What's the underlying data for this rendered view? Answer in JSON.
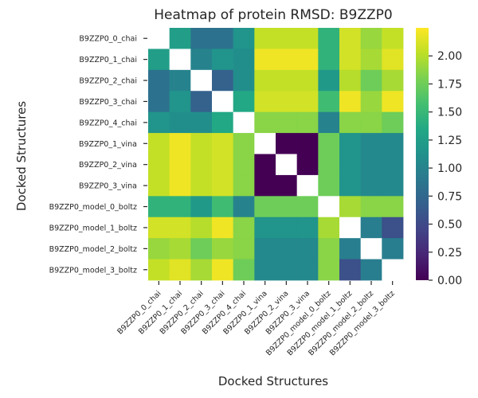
{
  "chart_data": {
    "type": "heatmap",
    "title": "Heatmap of protein RMSD: B9ZZP0",
    "xlabel": "Docked Structures",
    "ylabel": "Docked Structures",
    "labels": [
      "B9ZZP0_0_chai",
      "B9ZZP0_1_chai",
      "B9ZZP0_2_chai",
      "B9ZZP0_3_chai",
      "B9ZZP0_4_chai",
      "B9ZZP0_1_vina",
      "B9ZZP0_2_vina",
      "B9ZZP0_3_vina",
      "B9ZZP0_model_0_boltz",
      "B9ZZP0_model_1_boltz",
      "B9ZZP0_model_2_boltz",
      "B9ZZP0_model_3_boltz"
    ],
    "values": [
      [
        null,
        1.25,
        0.85,
        0.85,
        1.15,
        2.05,
        2.05,
        2.05,
        1.45,
        2.1,
        1.9,
        2.05
      ],
      [
        1.25,
        null,
        1.0,
        1.15,
        1.1,
        2.2,
        2.2,
        2.2,
        1.45,
        2.1,
        1.95,
        2.15
      ],
      [
        0.85,
        1.0,
        null,
        0.7,
        1.1,
        2.05,
        2.05,
        2.05,
        1.2,
        2.0,
        1.75,
        1.95
      ],
      [
        0.85,
        1.15,
        0.7,
        null,
        1.35,
        2.1,
        2.1,
        2.1,
        1.55,
        2.2,
        1.9,
        2.2
      ],
      [
        1.15,
        1.1,
        1.1,
        1.35,
        null,
        1.85,
        1.85,
        1.85,
        1.0,
        1.85,
        1.85,
        1.75
      ],
      [
        2.05,
        2.2,
        2.05,
        2.1,
        1.85,
        null,
        0.0,
        0.0,
        1.75,
        1.15,
        1.05,
        1.05
      ],
      [
        2.05,
        2.2,
        2.05,
        2.1,
        1.85,
        0.0,
        null,
        0.0,
        1.75,
        1.15,
        1.05,
        1.05
      ],
      [
        2.05,
        2.2,
        2.05,
        2.1,
        1.85,
        0.0,
        0.0,
        null,
        1.75,
        1.15,
        1.05,
        1.05
      ],
      [
        1.45,
        1.45,
        1.2,
        1.55,
        1.0,
        1.75,
        1.75,
        1.75,
        null,
        1.95,
        1.85,
        1.85
      ],
      [
        2.1,
        2.1,
        2.0,
        2.2,
        1.85,
        1.15,
        1.15,
        1.15,
        1.95,
        null,
        0.95,
        0.55
      ],
      [
        1.9,
        1.95,
        1.75,
        1.9,
        1.85,
        1.05,
        1.05,
        1.05,
        1.85,
        0.95,
        null,
        0.95
      ],
      [
        2.05,
        2.15,
        1.95,
        2.2,
        1.75,
        1.05,
        1.05,
        1.05,
        1.85,
        0.55,
        0.95,
        null
      ]
    ],
    "colormap": "viridis",
    "vmin": 0,
    "vmax": 2.25,
    "colorbar_ticks": [
      "0.00",
      "0.25",
      "0.50",
      "0.75",
      "1.00",
      "1.25",
      "1.50",
      "1.75",
      "2.00"
    ],
    "colorbar_tick_values": [
      0,
      0.25,
      0.5,
      0.75,
      1.0,
      1.25,
      1.5,
      1.75,
      2.0
    ],
    "diagonal": "blank (white)",
    "grid": false,
    "legend": "colorbar right"
  }
}
